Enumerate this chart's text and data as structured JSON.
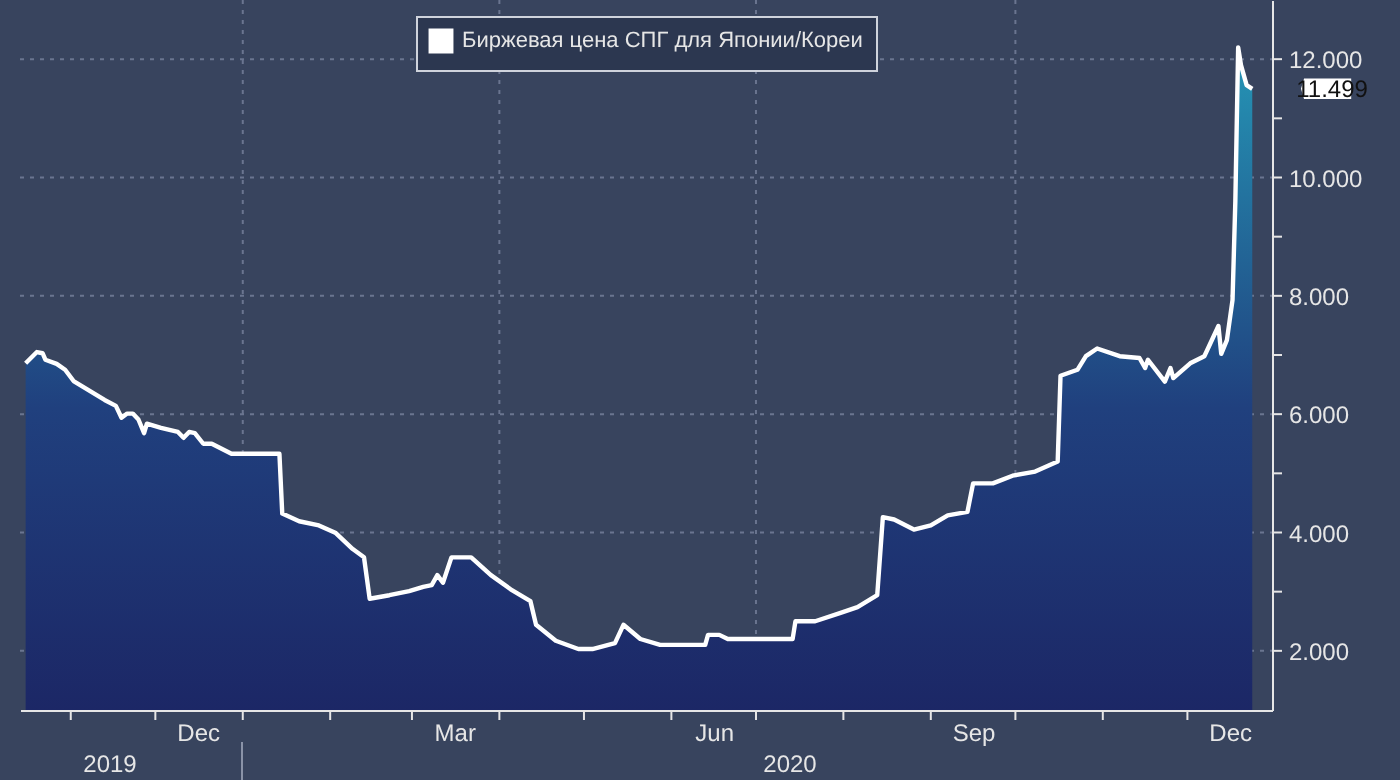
{
  "chart_data": {
    "type": "area",
    "legend": "top",
    "grid": true,
    "series": [
      {
        "name": "Биржевая цена СПГ для Японии/Кореи",
        "color": "#ffffff",
        "x": [
          "2019-10-16",
          "2019-10-20",
          "2019-10-22",
          "2019-10-23",
          "2019-10-27",
          "2019-10-30",
          "2019-11-02",
          "2019-11-13",
          "2019-11-17",
          "2019-11-19",
          "2019-11-21",
          "2019-11-23",
          "2019-11-25",
          "2019-11-27",
          "2019-11-28",
          "2019-12-03",
          "2019-12-09",
          "2019-12-11",
          "2019-12-13",
          "2019-12-15",
          "2019-12-18",
          "2019-12-21",
          "2019-12-28",
          "2020-01-14",
          "2020-01-15",
          "2020-01-21",
          "2020-01-28",
          "2020-02-03",
          "2020-02-09",
          "2020-02-13",
          "2020-02-15",
          "2020-02-22",
          "2020-02-29",
          "2020-03-05",
          "2020-03-08",
          "2020-03-10",
          "2020-03-12",
          "2020-03-15",
          "2020-03-22",
          "2020-03-29",
          "2020-04-05",
          "2020-04-12",
          "2020-04-14",
          "2020-04-21",
          "2020-04-29",
          "2020-05-04",
          "2020-05-12",
          "2020-05-15",
          "2020-05-21",
          "2020-05-28",
          "2020-06-04",
          "2020-06-13",
          "2020-06-14",
          "2020-06-18",
          "2020-06-21",
          "2020-07-14",
          "2020-07-15",
          "2020-07-22",
          "2020-07-31",
          "2020-08-06",
          "2020-08-13",
          "2020-08-15",
          "2020-08-19",
          "2020-08-26",
          "2020-09-01",
          "2020-09-07",
          "2020-09-14",
          "2020-09-16",
          "2020-09-23",
          "2020-09-30",
          "2020-10-08",
          "2020-10-16",
          "2020-10-17",
          "2020-10-23",
          "2020-10-26",
          "2020-10-30",
          "2020-11-07",
          "2020-11-14",
          "2020-11-16",
          "2020-11-17",
          "2020-11-23",
          "2020-11-25",
          "2020-11-26",
          "2020-12-02",
          "2020-12-07",
          "2020-12-08",
          "2020-12-12",
          "2020-12-13",
          "2020-12-15",
          "2020-12-17",
          "2020-12-18",
          "2020-12-19",
          "2020-12-20",
          "2020-12-22",
          "2020-12-24"
        ],
        "values": [
          6.86,
          7.05,
          7.03,
          6.92,
          6.85,
          6.75,
          6.56,
          6.24,
          6.14,
          5.94,
          6.01,
          6.01,
          5.91,
          5.68,
          5.84,
          5.77,
          5.7,
          5.6,
          5.7,
          5.68,
          5.5,
          5.5,
          5.33,
          5.33,
          4.32,
          4.19,
          4.12,
          3.99,
          3.72,
          3.58,
          2.88,
          2.94,
          3.01,
          3.08,
          3.11,
          3.28,
          3.15,
          3.58,
          3.58,
          3.28,
          3.04,
          2.84,
          2.44,
          2.17,
          2.03,
          2.03,
          2.13,
          2.44,
          2.2,
          2.1,
          2.1,
          2.1,
          2.27,
          2.27,
          2.2,
          2.2,
          2.5,
          2.5,
          2.64,
          2.74,
          2.94,
          4.26,
          4.22,
          4.05,
          4.12,
          4.29,
          4.35,
          4.83,
          4.83,
          4.96,
          5.03,
          5.2,
          6.65,
          6.75,
          6.98,
          7.11,
          6.98,
          6.95,
          6.78,
          6.92,
          6.55,
          6.78,
          6.61,
          6.86,
          6.98,
          7.08,
          7.49,
          7.02,
          7.25,
          7.93,
          9.6,
          12.2,
          11.9,
          11.56,
          11.499
        ],
        "value_labels": [
          null,
          null,
          null,
          null,
          null,
          null,
          null,
          null,
          null,
          null,
          null,
          null,
          null,
          null,
          null,
          null,
          null,
          null,
          null,
          null,
          null,
          null,
          null,
          null,
          null,
          null,
          null,
          null,
          null,
          null,
          null,
          null,
          null,
          null,
          null,
          null,
          null,
          null,
          null,
          null,
          null,
          null,
          null,
          null,
          null,
          null,
          null,
          null,
          null,
          null,
          null,
          null,
          null,
          null,
          null,
          null,
          null,
          null,
          null,
          null,
          null,
          null,
          null,
          null,
          null,
          null,
          null,
          null,
          null,
          null,
          null,
          null,
          null,
          null,
          null,
          null,
          null,
          null,
          null,
          null,
          null,
          null,
          null,
          null,
          null,
          null,
          null,
          null,
          null,
          null,
          null,
          null,
          null,
          null,
          "11.499"
        ]
      }
    ],
    "xlim": [
      "2019-10-14",
      "2020-12-31"
    ],
    "xticks": [
      {
        "value": "2019-11-01",
        "label": null
      },
      {
        "value": "2019-12-01",
        "label": null
      },
      {
        "value": "2019-12-16",
        "label": "Dec"
      },
      {
        "value": "2020-01-01",
        "label": null
      },
      {
        "value": "2020-02-01",
        "label": null
      },
      {
        "value": "2020-03-01",
        "label": null
      },
      {
        "value": "2020-03-16",
        "label": "Mar"
      },
      {
        "value": "2020-04-01",
        "label": null
      },
      {
        "value": "2020-05-01",
        "label": null
      },
      {
        "value": "2020-06-01",
        "label": null
      },
      {
        "value": "2020-06-16",
        "label": "Jun"
      },
      {
        "value": "2020-07-01",
        "label": null
      },
      {
        "value": "2020-08-01",
        "label": null
      },
      {
        "value": "2020-09-01",
        "label": null
      },
      {
        "value": "2020-09-16",
        "label": "Sep"
      },
      {
        "value": "2020-10-01",
        "label": null
      },
      {
        "value": "2020-11-01",
        "label": null
      },
      {
        "value": "2020-12-01",
        "label": null
      },
      {
        "value": "2020-12-16",
        "label": "Dec"
      }
    ],
    "ylim": [
      1,
      13
    ],
    "yticks": [
      {
        "value": 2,
        "label": "2.000"
      },
      {
        "value": 3,
        "label": null
      },
      {
        "value": 4,
        "label": "4.000"
      },
      {
        "value": 5,
        "label": null
      },
      {
        "value": 6,
        "label": "6.000"
      },
      {
        "value": 7,
        "label": null
      },
      {
        "value": 8,
        "label": "8.000"
      },
      {
        "value": 9,
        "label": null
      },
      {
        "value": 10,
        "label": "10.000"
      },
      {
        "value": 11,
        "label": null
      },
      {
        "value": 12,
        "label": "12.000"
      }
    ],
    "annotations": [
      "2019",
      "2020"
    ]
  }
}
